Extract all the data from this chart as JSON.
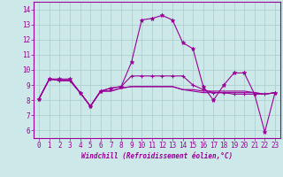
{
  "xlabel": "Windchill (Refroidissement éolien,°C)",
  "bg_color": "#cce8e8",
  "grid_color": "#aacccc",
  "line_color": "#990099",
  "xlim": [
    -0.5,
    23.5
  ],
  "ylim": [
    5.5,
    14.5
  ],
  "yticks": [
    6,
    7,
    8,
    9,
    10,
    11,
    12,
    13,
    14
  ],
  "xticks": [
    0,
    1,
    2,
    3,
    4,
    5,
    6,
    7,
    8,
    9,
    10,
    11,
    12,
    13,
    14,
    15,
    16,
    17,
    18,
    19,
    20,
    21,
    22,
    23
  ],
  "series1": [
    8.1,
    9.4,
    9.4,
    9.4,
    8.5,
    7.6,
    8.6,
    8.8,
    8.9,
    10.5,
    13.3,
    13.4,
    13.6,
    13.3,
    11.8,
    11.4,
    8.9,
    8.0,
    9.0,
    9.8,
    9.8,
    8.4,
    5.9,
    8.5
  ],
  "series2": [
    8.1,
    9.4,
    9.3,
    9.3,
    8.5,
    7.6,
    8.6,
    8.8,
    8.9,
    9.6,
    9.6,
    9.6,
    9.6,
    9.6,
    9.6,
    9.0,
    8.7,
    8.5,
    8.5,
    8.4,
    8.4,
    8.4,
    8.4,
    8.5
  ],
  "series3": [
    8.1,
    9.4,
    9.3,
    9.3,
    8.5,
    7.6,
    8.6,
    8.6,
    8.8,
    8.9,
    8.9,
    8.9,
    8.9,
    8.9,
    8.7,
    8.7,
    8.6,
    8.6,
    8.6,
    8.6,
    8.6,
    8.5,
    8.4,
    8.5
  ],
  "series4": [
    8.1,
    9.4,
    9.3,
    9.3,
    8.5,
    7.6,
    8.6,
    8.6,
    8.8,
    8.9,
    8.9,
    8.9,
    8.9,
    8.9,
    8.7,
    8.6,
    8.5,
    8.5,
    8.5,
    8.5,
    8.5,
    8.5,
    8.4,
    8.5
  ]
}
